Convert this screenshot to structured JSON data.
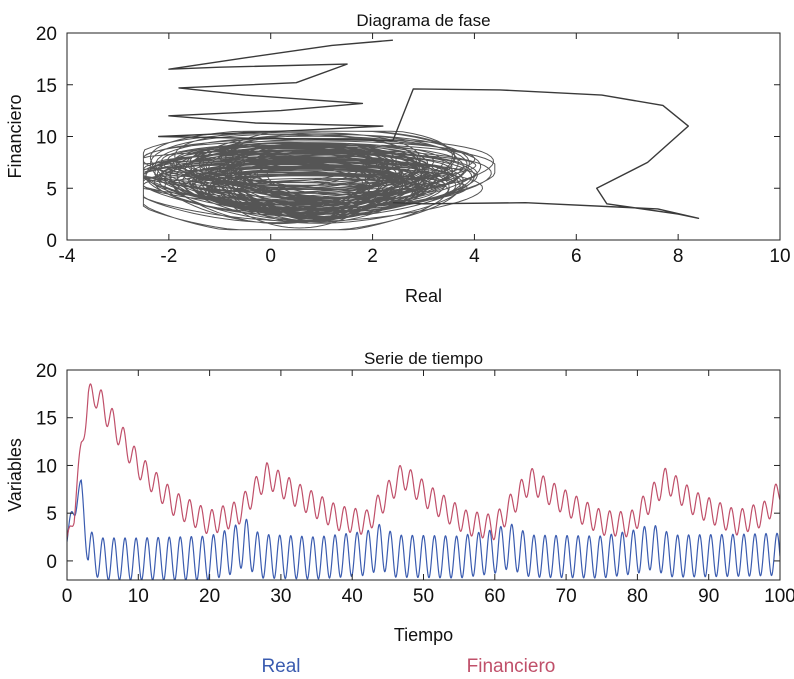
{
  "chart_data": [
    {
      "type": "line",
      "title": "Diagrama de fase",
      "xlabel": "Real",
      "ylabel": "Financiero",
      "xlim": [
        -4,
        10
      ],
      "ylim": [
        0,
        20
      ],
      "xticks": [
        "-4",
        "-2",
        "0",
        "2",
        "4",
        "6",
        "8",
        "10"
      ],
      "yticks": [
        "0",
        "5",
        "10",
        "15",
        "20"
      ],
      "grid": false,
      "series": [
        {
          "color": "#3a3a3a",
          "x": [
            2.4,
            1.2,
            -0.5,
            -2.0,
            -1.0,
            1.5,
            0.5,
            -1.8,
            -0.5,
            1.8,
            0.2,
            -2.0,
            -0.3,
            2.2,
            0.6,
            -2.2,
            0.0,
            2.4,
            2.8,
            4.5,
            6.5,
            7.7,
            8.2,
            7.4,
            6.4,
            6.6,
            8.0,
            8.4,
            7.6,
            5.0,
            3.0,
            2.4
          ],
          "y": [
            19.3,
            18.8,
            17.6,
            16.5,
            16.7,
            17.0,
            15.2,
            14.7,
            14.0,
            13.2,
            12.5,
            12.0,
            11.3,
            11.0,
            10.6,
            10.0,
            9.8,
            9.6,
            14.6,
            14.5,
            14.0,
            13.0,
            11.0,
            7.5,
            5.0,
            3.5,
            2.5,
            2.1,
            3.0,
            3.6,
            3.5,
            3.6
          ]
        }
      ],
      "cloud": {
        "x_range": [
          -2.5,
          4.4
        ],
        "y_range": [
          1.0,
          10.5
        ],
        "center": [
          0.8,
          5.8
        ]
      }
    },
    {
      "type": "line",
      "title": "Serie de tiempo",
      "xlabel": "Tiempo",
      "ylabel": "Variables",
      "xlim": [
        0,
        100
      ],
      "ylim": [
        -2,
        20
      ],
      "xticks": [
        "0",
        "10",
        "20",
        "30",
        "40",
        "50",
        "60",
        "70",
        "80",
        "90",
        "100"
      ],
      "yticks": [
        "0",
        "5",
        "10",
        "15",
        "20"
      ],
      "grid": false,
      "legend_position": "bottom",
      "series": [
        {
          "name": "Real",
          "color": "#3b5cb0",
          "t": [
            0,
            1,
            2,
            3,
            5,
            10,
            20,
            23,
            25,
            27,
            35,
            42,
            44,
            46,
            55,
            60,
            62,
            65,
            75,
            80,
            82,
            85,
            95,
            100
          ],
          "mean": [
            2.0,
            6.0,
            7.5,
            1.0,
            0.2,
            0.2,
            0.3,
            1.0,
            2.0,
            0.5,
            0.3,
            0.8,
            1.5,
            0.5,
            0.4,
            1.0,
            1.6,
            0.5,
            0.4,
            1.0,
            1.5,
            0.5,
            0.6,
            0.7
          ],
          "amplitude": [
            0.5,
            1.5,
            1.0,
            2.2,
            2.2,
            2.2,
            2.3,
            2.4,
            2.5,
            2.3,
            2.2,
            2.3,
            2.4,
            2.2,
            2.2,
            2.3,
            2.4,
            2.2,
            2.2,
            2.3,
            2.4,
            2.2,
            2.2,
            2.2
          ]
        },
        {
          "name": "Financiero",
          "color": "#c0506a",
          "t": [
            0,
            1,
            2,
            3,
            4,
            6,
            10,
            15,
            20,
            24,
            28,
            32,
            38,
            42,
            47,
            51,
            56,
            60,
            65,
            69,
            75,
            79,
            84,
            88,
            94,
            98,
            100
          ],
          "mean": [
            2.0,
            5.0,
            12.0,
            17.0,
            17.5,
            15.0,
            10.0,
            6.0,
            4.0,
            5.0,
            9.0,
            7.0,
            4.5,
            4.0,
            9.0,
            6.5,
            4.0,
            3.5,
            8.5,
            6.5,
            4.0,
            3.8,
            8.5,
            6.0,
            4.0,
            5.0,
            7.5
          ],
          "amplitude": [
            0.5,
            1.0,
            1.0,
            1.4,
            1.4,
            1.4,
            1.3,
            1.3,
            1.3,
            1.3,
            1.3,
            1.3,
            1.3,
            1.3,
            1.3,
            1.3,
            1.3,
            1.3,
            1.3,
            1.3,
            1.3,
            1.3,
            1.3,
            1.3,
            1.3,
            1.3,
            1.3
          ]
        }
      ]
    }
  ]
}
